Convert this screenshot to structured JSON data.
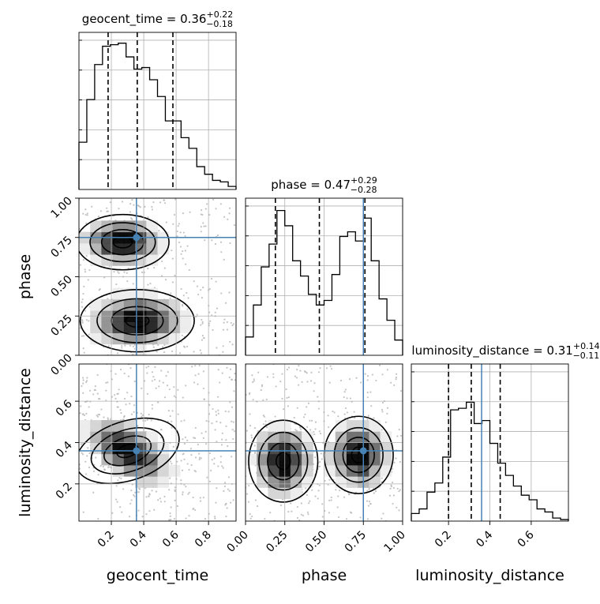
{
  "chart_data": {
    "type": "corner",
    "parameters": [
      "geocent_time",
      "phase",
      "luminosity_distance"
    ],
    "axis_labels": [
      "geocent_time",
      "phase",
      "luminosity_distance"
    ],
    "titles": [
      {
        "name": "geocent_time",
        "prefix": "geocent_time = ",
        "median": "0.36",
        "plus": "+0.22",
        "minus": "−0.18"
      },
      {
        "name": "phase",
        "prefix": "phase = ",
        "median": "0.47",
        "plus": "+0.29",
        "minus": "−0.28"
      },
      {
        "name": "luminosity_distance",
        "prefix": "luminosity_distance = ",
        "median": "0.31",
        "plus": "+0.14",
        "minus": "−0.11"
      }
    ],
    "ranges": {
      "geocent_time": [
        0,
        0.97
      ],
      "phase": [
        0,
        1.0
      ],
      "luminosity_distance": [
        0.02,
        0.78
      ]
    },
    "ticks": {
      "geocent_time": [
        0.2,
        0.4,
        0.6,
        0.8
      ],
      "phase": [
        0.0,
        0.25,
        0.5,
        0.75,
        1.0
      ],
      "luminosity_distance": [
        0.2,
        0.4,
        0.6
      ]
    },
    "tick_labels": {
      "geocent_time": [
        "0.2",
        "0.4",
        "0.6",
        "0.8"
      ],
      "phase_x": [
        "0.00",
        "0.25",
        "0.50",
        "0.75",
        "1.00"
      ],
      "phase_y": [
        "0.25",
        "0.50",
        "0.75",
        "1.00"
      ],
      "phase_y_zero": "0.00",
      "luminosity_distance": [
        "0.2",
        "0.4",
        "0.6"
      ]
    },
    "quantiles": {
      "geocent_time": [
        0.18,
        0.36,
        0.58
      ],
      "phase": [
        0.19,
        0.47,
        0.76
      ],
      "luminosity_distance": [
        0.2,
        0.31,
        0.45
      ]
    },
    "truths": {
      "geocent_time": 0.355,
      "phase": 0.75,
      "luminosity_distance": 0.36
    },
    "histograms": {
      "geocent_time": {
        "edges": [
          0.0,
          0.0485,
          0.097,
          0.1455,
          0.194,
          0.2425,
          0.291,
          0.3395,
          0.388,
          0.4365,
          0.485,
          0.5335,
          0.582,
          0.6305,
          0.679,
          0.7275,
          0.776,
          0.8245,
          0.873,
          0.9215,
          0.97
        ],
        "counts": [
          0.31,
          0.59,
          0.82,
          0.94,
          0.95,
          0.96,
          0.87,
          0.79,
          0.8,
          0.72,
          0.61,
          0.45,
          0.45,
          0.34,
          0.27,
          0.15,
          0.1,
          0.06,
          0.05,
          0.02
        ]
      },
      "phase": {
        "edges": [
          0.0,
          0.05,
          0.1,
          0.15,
          0.2,
          0.25,
          0.3,
          0.35,
          0.4,
          0.45,
          0.5,
          0.55,
          0.6,
          0.65,
          0.7,
          0.75,
          0.8,
          0.85,
          0.9,
          0.95,
          1.0
        ],
        "counts": [
          0.12,
          0.33,
          0.58,
          0.73,
          0.95,
          0.85,
          0.62,
          0.52,
          0.4,
          0.33,
          0.36,
          0.53,
          0.78,
          0.81,
          0.75,
          0.9,
          0.62,
          0.37,
          0.23,
          0.1
        ]
      },
      "luminosity_distance": {
        "edges": [
          0.02,
          0.058,
          0.096,
          0.134,
          0.172,
          0.21,
          0.248,
          0.286,
          0.324,
          0.362,
          0.4,
          0.438,
          0.476,
          0.514,
          0.552,
          0.59,
          0.628,
          0.666,
          0.704,
          0.742,
          0.78
        ],
        "counts": [
          0.05,
          0.08,
          0.19,
          0.25,
          0.42,
          0.73,
          0.74,
          0.78,
          0.64,
          0.66,
          0.51,
          0.38,
          0.3,
          0.23,
          0.17,
          0.14,
          0.08,
          0.06,
          0.02,
          0.01
        ]
      }
    },
    "density_modes": {
      "phase_vs_geocent_time": [
        {
          "x": 0.27,
          "y": 0.72,
          "sx": 0.13,
          "sy": 0.08
        },
        {
          "x": 0.36,
          "y": 0.22,
          "sx": 0.16,
          "sy": 0.09
        }
      ],
      "luminosity_distance_vs_geocent_time": [
        {
          "x": 0.3,
          "y": 0.36,
          "sx": 0.15,
          "sy": 0.065,
          "tilt": -0.42
        }
      ],
      "luminosity_distance_vs_phase": [
        {
          "x": 0.24,
          "y": 0.31,
          "sx": 0.1,
          "sy": 0.09
        },
        {
          "x": 0.72,
          "y": 0.34,
          "sx": 0.1,
          "sy": 0.085
        }
      ]
    },
    "grid": true,
    "legend": "none"
  }
}
